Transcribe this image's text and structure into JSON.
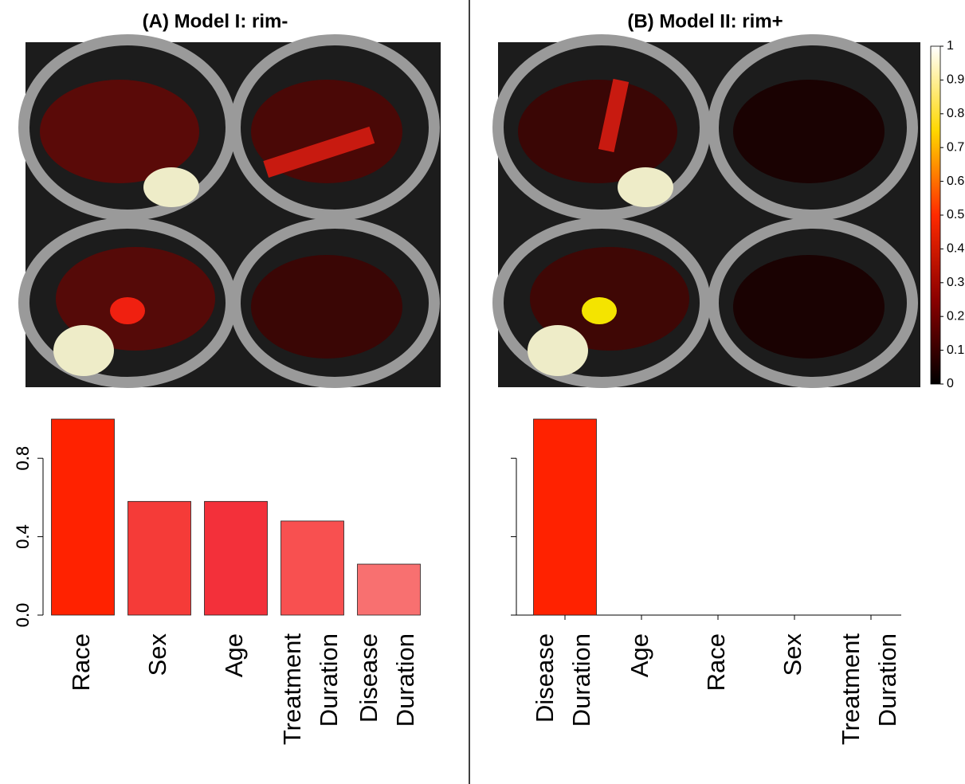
{
  "chart_data": [
    {
      "type": "bar",
      "title": "(A) Model I: rim-",
      "categories": [
        "Race",
        "Sex",
        "Age",
        "Treatment Duration",
        "Disease Duration"
      ],
      "values": [
        1.0,
        0.58,
        0.58,
        0.48,
        0.26
      ],
      "colors": [
        "#ff2200",
        "#f53b38",
        "#f3303a",
        "#f85050",
        "#f87070"
      ],
      "ylim": [
        0,
        1
      ],
      "yticks": [
        {
          "value": 0,
          "label": "0.0"
        },
        0.4,
        0.8
      ],
      "x_axis": false
    },
    {
      "type": "bar",
      "title": "(B) Model II: rim+",
      "categories": [
        "Disease Duration",
        "Age",
        "Race",
        "Sex",
        "Treatment Duration"
      ],
      "values": [
        1.0,
        0,
        0,
        0,
        0
      ],
      "colors": [
        "#ff2200",
        "#ff2200",
        "#ff2200",
        "#ff2200",
        "#ff2200"
      ],
      "ylim": [
        0,
        1
      ],
      "yticks": [
        {
          "value": 0,
          "label": "0.0"
        },
        0.4,
        0.8
      ],
      "x_axis": true
    },
    {
      "type": "colorbar",
      "colors": [
        "#000000",
        "#8b0000",
        "#ff2a00",
        "#ffd700",
        "#ffffff"
      ],
      "ylim": [
        0,
        1
      ],
      "yticks": [
        0,
        0.1,
        0.2,
        0.3,
        0.4,
        0.5,
        0.6,
        0.7,
        0.8,
        0.9,
        1
      ]
    }
  ]
}
